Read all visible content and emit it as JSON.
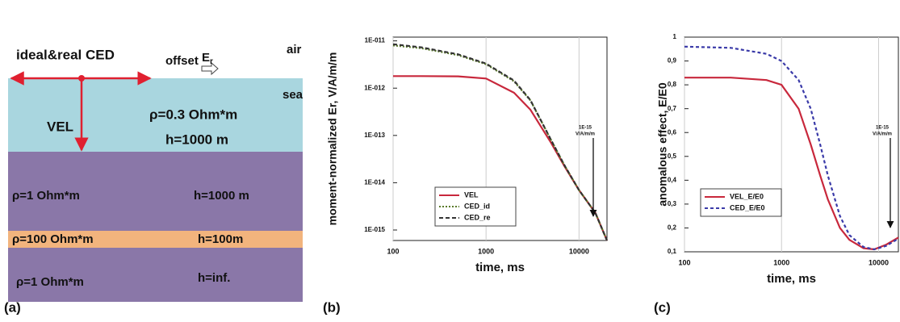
{
  "diagram": {
    "panel_label": "(a)",
    "source_label": "ideal&real CED",
    "offset_label": "offset",
    "field_label": {
      "text": "E",
      "sub": "r"
    },
    "air_label": "air",
    "sea_label": "sea",
    "vel_label": "VEL",
    "layers": [
      {
        "rho": "ρ=0.3 Ohm*m",
        "h": "h=1000 m"
      },
      {
        "rho": "ρ=1 Ohm*m",
        "h": "h=1000 m"
      },
      {
        "rho": "ρ=100 Ohm*m",
        "h": "h=100m"
      },
      {
        "rho": "ρ=1 Ohm*m",
        "h": "h=inf."
      }
    ]
  },
  "chart_data": [
    {
      "type": "line",
      "panel_label": "(b)",
      "ylabel": "moment-normalized Er, V/A/m/m",
      "xlabel": "time, ms",
      "xlog": true,
      "ylog": true,
      "grid": true,
      "legend": "lower center",
      "xlim": [
        100,
        20000
      ],
      "xticks": [
        100,
        1000,
        10000
      ],
      "ylim": [
        6e-16,
        1.2e-11
      ],
      "yticks": [
        {
          "value": 1e-11,
          "label": "1E-011"
        },
        {
          "value": 1e-12,
          "label": "1E-012"
        },
        {
          "value": 1e-13,
          "label": "1E-013"
        },
        {
          "value": 1e-14,
          "label": "1E-014"
        },
        {
          "value": 1e-15,
          "label": "1E-015"
        }
      ],
      "x": [
        100,
        200,
        500,
        1000,
        2000,
        3000,
        5000,
        7000,
        10000,
        15000,
        20000
      ],
      "series": [
        {
          "name": "VEL",
          "color": "#c8283c",
          "dash": "none",
          "values": [
            1.8e-12,
            1.8e-12,
            1.78e-12,
            1.6e-12,
            8e-13,
            3.5e-13,
            7e-14,
            2.2e-14,
            7e-15,
            2.3e-15,
            6e-16
          ]
        },
        {
          "name": "CED_id",
          "color": "#5a7a2a",
          "dash": "2,2",
          "values": [
            8e-12,
            7e-12,
            5e-12,
            3.2e-12,
            1.4e-12,
            5.5e-13,
            8e-14,
            2.3e-14,
            7e-15,
            2.3e-15,
            6e-16
          ]
        },
        {
          "name": "CED_re",
          "color": "#333333",
          "dash": "5,3",
          "values": [
            8.5e-12,
            7.3e-12,
            5.2e-12,
            3.3e-12,
            1.45e-12,
            5.6e-13,
            8e-14,
            2.3e-14,
            7e-15,
            2.3e-15,
            6e-16
          ]
        }
      ],
      "annotation": [
        "1E-15",
        "V/A/m/m"
      ]
    },
    {
      "type": "line",
      "panel_label": "(c)",
      "ylabel": "anomalous effect, E/E0",
      "xlabel": "time, ms",
      "xlog": true,
      "ylog": false,
      "grid": true,
      "legend": "center left",
      "xlim": [
        100,
        16000
      ],
      "xticks": [
        100,
        1000,
        10000
      ],
      "ylim": [
        0.1,
        1
      ],
      "yticks": [
        1,
        {
          "value": 0.9,
          "label": "0,9"
        },
        {
          "value": 0.8,
          "label": "0,8"
        },
        {
          "value": 0.7,
          "label": "0,7"
        },
        {
          "value": 0.6,
          "label": "0,6"
        },
        {
          "value": 0.5,
          "label": "0,5"
        },
        {
          "value": 0.4,
          "label": "0,4"
        },
        {
          "value": 0.3,
          "label": "0,3"
        },
        {
          "value": 0.2,
          "label": "0,2"
        },
        {
          "value": 0.1,
          "label": "0,1"
        }
      ],
      "x": [
        100,
        300,
        700,
        1000,
        1500,
        2000,
        2500,
        3000,
        4000,
        5000,
        7000,
        9000,
        12000,
        16000
      ],
      "series": [
        {
          "name": "VEL_E/E0",
          "color": "#c8283c",
          "dash": "none",
          "values": [
            0.83,
            0.83,
            0.82,
            0.8,
            0.7,
            0.55,
            0.42,
            0.32,
            0.2,
            0.15,
            0.115,
            0.11,
            0.13,
            0.16
          ]
        },
        {
          "name": "CED_E/E0",
          "color": "#3a3aa8",
          "dash": "4,3",
          "values": [
            0.96,
            0.955,
            0.93,
            0.9,
            0.82,
            0.7,
            0.55,
            0.42,
            0.25,
            0.17,
            0.12,
            0.11,
            0.125,
            0.155
          ]
        }
      ],
      "annotation": [
        "1E-15",
        "V/A/m/m"
      ]
    }
  ]
}
